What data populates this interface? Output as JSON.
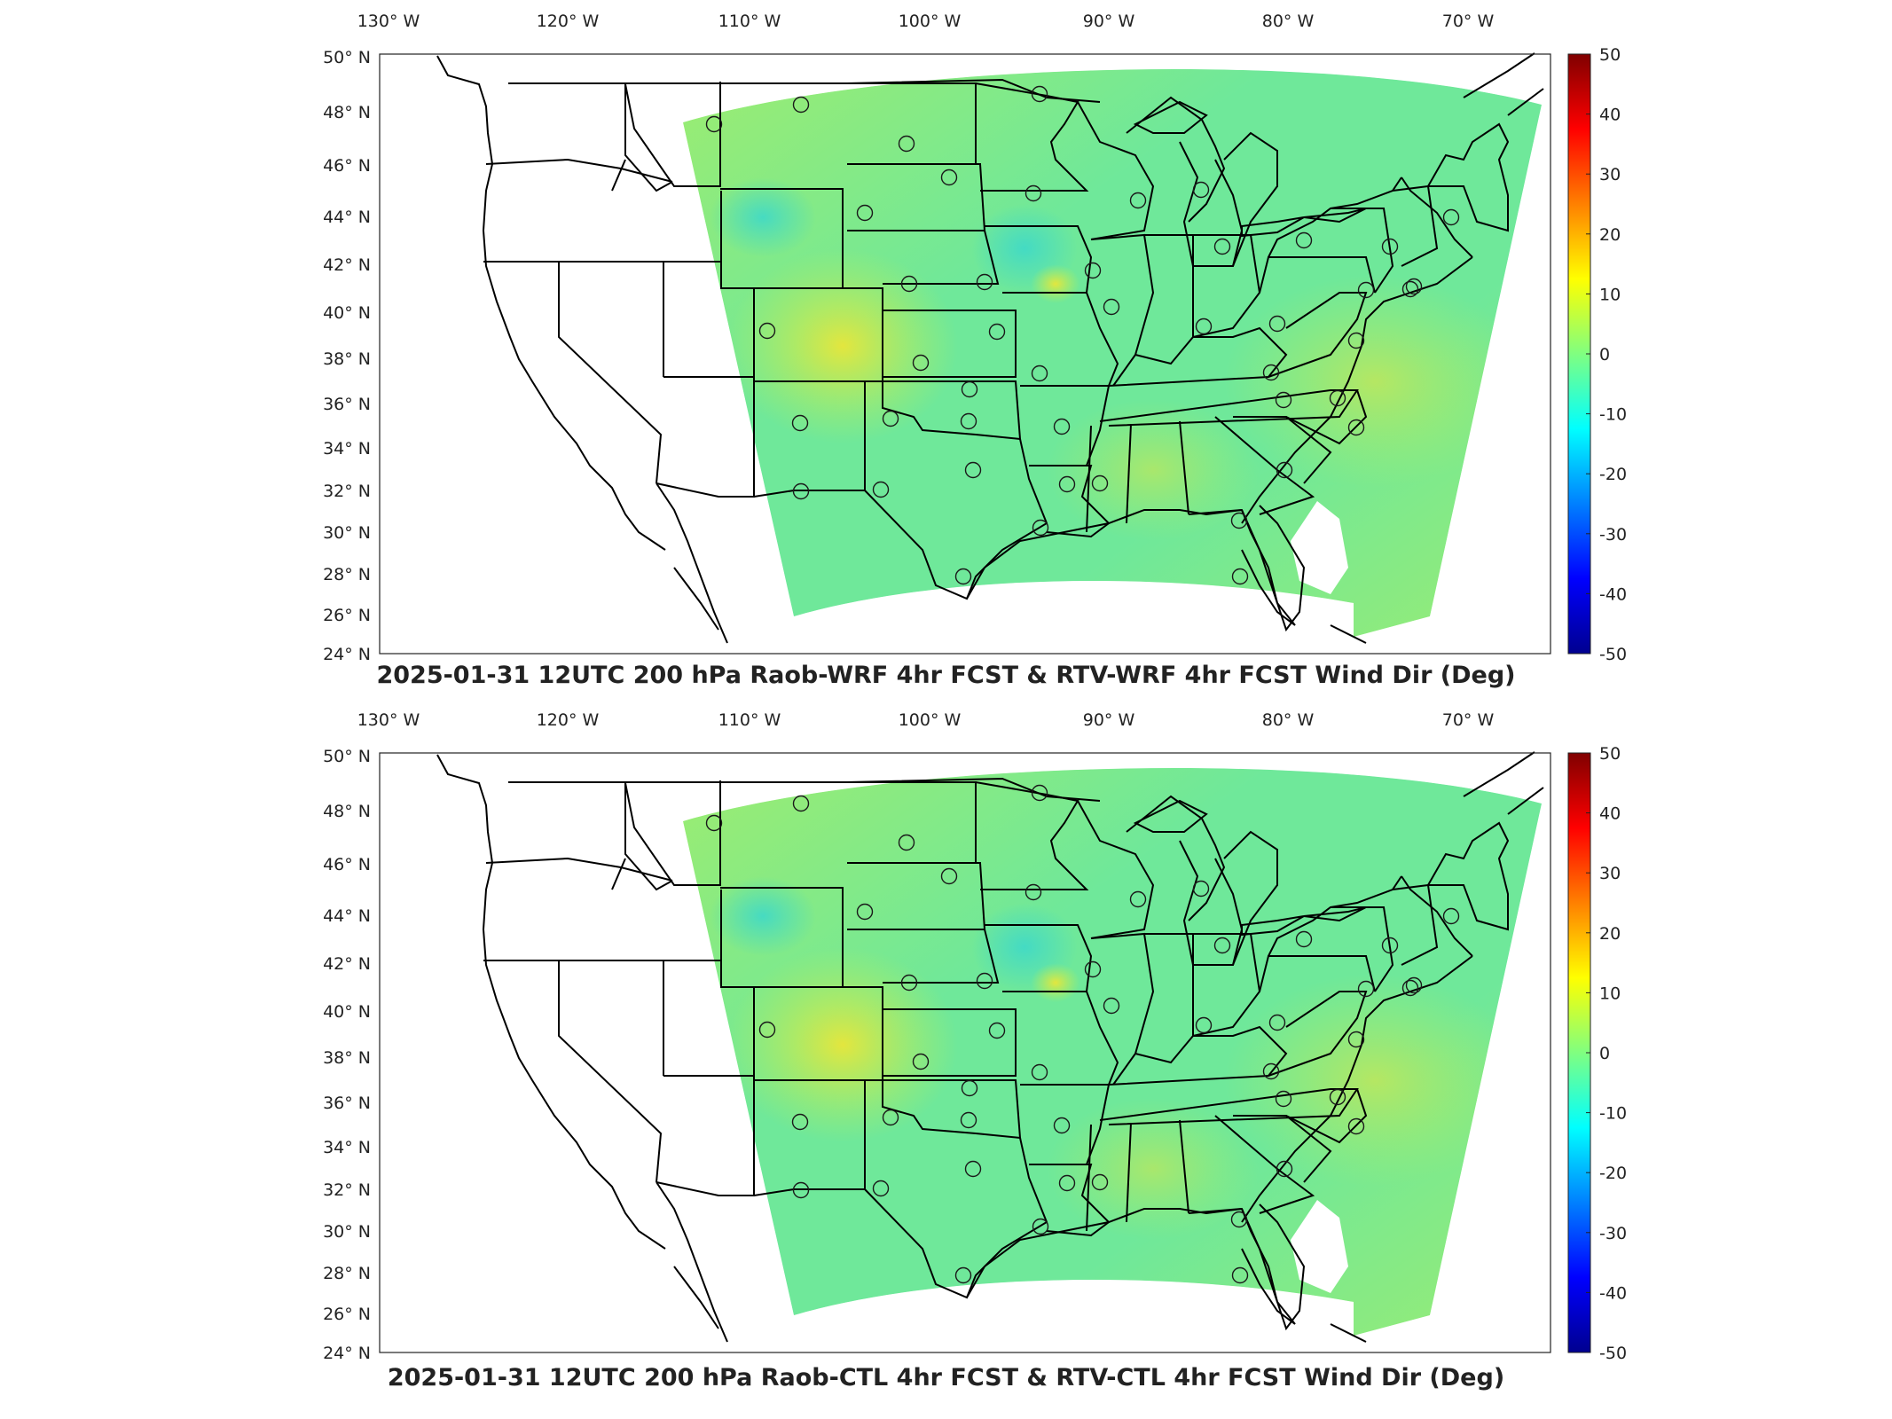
{
  "figure": {
    "panels": [
      {
        "caption": "2025-01-31 12UTC 200 hPa Raob-WRF 4hr FCST & RTV-WRF 4hr FCST Wind Dir (Deg)"
      },
      {
        "caption": "2025-01-31 12UTC 200 hPa Raob-CTL 4hr FCST & RTV-CTL 4hr FCST Wind Dir (Deg)"
      }
    ],
    "lon_labels": [
      "130° W",
      "120° W",
      "110° W",
      "100° W",
      "90° W",
      "80° W",
      "70° W"
    ],
    "lat_labels": [
      "50° N",
      "48° N",
      "46° N",
      "44° N",
      "42° N",
      "40° N",
      "38° N",
      "36° N",
      "34° N",
      "32° N",
      "30° N",
      "28° N",
      "26° N",
      "24° N"
    ],
    "colorbar": {
      "ticks": [
        "50",
        "40",
        "30",
        "20",
        "10",
        "0",
        "-10",
        "-20",
        "-30",
        "-40",
        "-50"
      ],
      "min": -50,
      "max": 50,
      "colors": [
        "#00008f",
        "#0000ff",
        "#0080ff",
        "#00ffff",
        "#80ff80",
        "#ffff00",
        "#ff8000",
        "#ff0000",
        "#800000"
      ]
    },
    "field_colors": {
      "base": "#6fe89a",
      "warm": "#c6f04a",
      "cool": "#3fd9c8",
      "hot": "#f0e634"
    },
    "marker_color": "#1a1a1a"
  }
}
